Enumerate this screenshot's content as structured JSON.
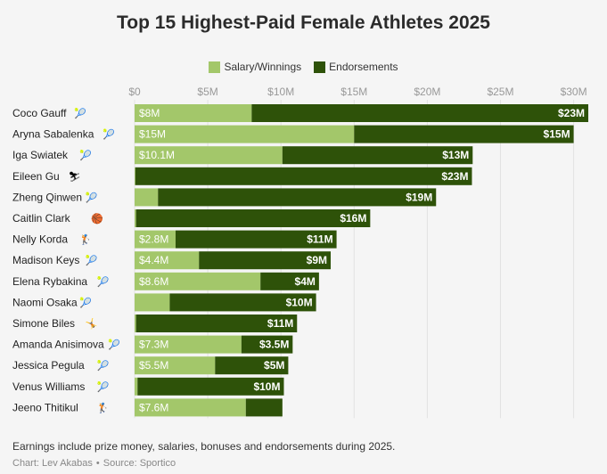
{
  "chart_data": {
    "type": "bar",
    "orientation": "horizontal",
    "stacked": true,
    "title": "Top 15 Highest-Paid Female Athletes 2025",
    "xlabel": "",
    "ylabel": "",
    "xlim": [
      0,
      31
    ],
    "x_ticks": [
      0,
      5,
      10,
      15,
      20,
      25,
      30
    ],
    "x_tick_labels": [
      "$0",
      "$5M",
      "$10M",
      "$15M",
      "$20M",
      "$25M",
      "$30M"
    ],
    "legend_position": "top-center",
    "categories": [
      {
        "name": "Coco Gauff",
        "sport": "tennis",
        "icon": "🎾"
      },
      {
        "name": "Aryna Sabalenka",
        "sport": "tennis",
        "icon": "🎾"
      },
      {
        "name": "Iga Swiatek",
        "sport": "tennis",
        "icon": "🎾"
      },
      {
        "name": "Eileen Gu",
        "sport": "skiing",
        "icon": "⛷"
      },
      {
        "name": "Zheng Qinwen",
        "sport": "tennis",
        "icon": "🎾"
      },
      {
        "name": "Caitlin Clark",
        "sport": "basketball",
        "icon": "🏀"
      },
      {
        "name": "Nelly Korda",
        "sport": "golf",
        "icon": "🏌"
      },
      {
        "name": "Madison Keys",
        "sport": "tennis",
        "icon": "🎾"
      },
      {
        "name": "Elena Rybakina",
        "sport": "tennis",
        "icon": "🎾"
      },
      {
        "name": "Naomi Osaka",
        "sport": "tennis",
        "icon": "🎾"
      },
      {
        "name": "Simone Biles",
        "sport": "gymnastics",
        "icon": "🤸"
      },
      {
        "name": "Amanda Anisimova",
        "sport": "tennis",
        "icon": "🎾"
      },
      {
        "name": "Jessica Pegula",
        "sport": "tennis",
        "icon": "🎾"
      },
      {
        "name": "Venus Williams",
        "sport": "tennis",
        "icon": "🎾"
      },
      {
        "name": "Jeeno Thitikul",
        "sport": "golf",
        "icon": "🏌"
      }
    ],
    "series": [
      {
        "name": "Salary/Winnings",
        "color": "#a3c76a",
        "values": [
          8,
          15,
          10.1,
          0.05,
          1.6,
          0.1,
          2.8,
          4.4,
          8.6,
          2.4,
          0.1,
          7.3,
          5.5,
          0.2,
          7.6
        ],
        "labels": [
          "$8M",
          "$15M",
          "$10.1M",
          "",
          "",
          "",
          "$2.8M",
          "$4.4M",
          "$8.6M",
          "",
          "",
          "$7.3M",
          "$5.5M",
          "",
          "$7.6M"
        ]
      },
      {
        "name": "Endorsements",
        "color": "#2e5209",
        "values": [
          23,
          15,
          13,
          23,
          19,
          16,
          11,
          9,
          4,
          10,
          11,
          3.5,
          5,
          10,
          2.5
        ],
        "labels": [
          "$23M",
          "$15M",
          "$13M",
          "$23M",
          "$19M",
          "$16M",
          "$11M",
          "$9M",
          "$4M",
          "$10M",
          "$11M",
          "$3.5M",
          "$5M",
          "$10M",
          ""
        ]
      }
    ]
  },
  "footnote": "Earnings include prize money, salaries, bonuses and endorsements during 2025.",
  "credit": {
    "chart_by": "Chart: Lev Akabas",
    "separator": "•",
    "source": "Source: Sportico"
  }
}
